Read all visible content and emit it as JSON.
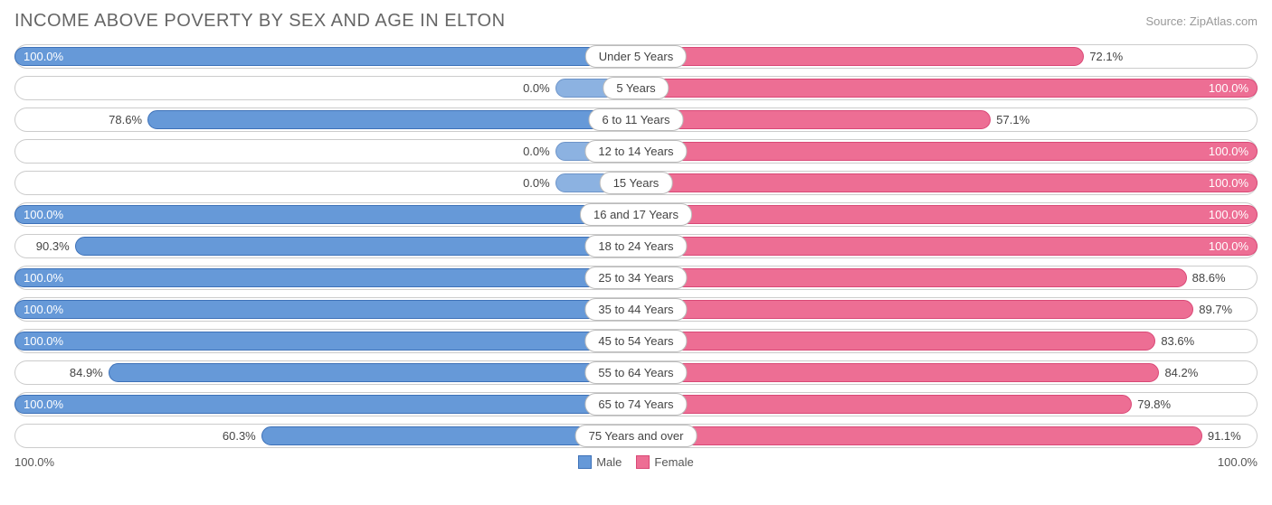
{
  "title": "INCOME ABOVE POVERTY BY SEX AND AGE IN ELTON",
  "source": "Source: ZipAtlas.com",
  "axis_left": "100.0%",
  "axis_right": "100.0%",
  "legend": {
    "male": "Male",
    "female": "Female"
  },
  "colors": {
    "male_fill": "#6699d8",
    "male_border": "#3d71b8",
    "female_fill": "#ed6e94",
    "female_border": "#d94876",
    "track_border": "#cccccc",
    "text": "#444444"
  },
  "rows": [
    {
      "category": "Under 5 Years",
      "male": 100.0,
      "female": 72.1,
      "male_label": "100.0%",
      "female_label": "72.1%"
    },
    {
      "category": "5 Years",
      "male": 0.0,
      "female": 100.0,
      "male_label": "0.0%",
      "female_label": "100.0%",
      "male_stub": true
    },
    {
      "category": "6 to 11 Years",
      "male": 78.6,
      "female": 57.1,
      "male_label": "78.6%",
      "female_label": "57.1%"
    },
    {
      "category": "12 to 14 Years",
      "male": 0.0,
      "female": 100.0,
      "male_label": "0.0%",
      "female_label": "100.0%",
      "male_stub": true
    },
    {
      "category": "15 Years",
      "male": 0.0,
      "female": 100.0,
      "male_label": "0.0%",
      "female_label": "100.0%",
      "male_stub": true
    },
    {
      "category": "16 and 17 Years",
      "male": 100.0,
      "female": 100.0,
      "male_label": "100.0%",
      "female_label": "100.0%"
    },
    {
      "category": "18 to 24 Years",
      "male": 90.3,
      "female": 100.0,
      "male_label": "90.3%",
      "female_label": "100.0%"
    },
    {
      "category": "25 to 34 Years",
      "male": 100.0,
      "female": 88.6,
      "male_label": "100.0%",
      "female_label": "88.6%"
    },
    {
      "category": "35 to 44 Years",
      "male": 100.0,
      "female": 89.7,
      "male_label": "100.0%",
      "female_label": "89.7%"
    },
    {
      "category": "45 to 54 Years",
      "male": 100.0,
      "female": 83.6,
      "male_label": "100.0%",
      "female_label": "83.6%"
    },
    {
      "category": "55 to 64 Years",
      "male": 84.9,
      "female": 84.2,
      "male_label": "84.9%",
      "female_label": "84.2%"
    },
    {
      "category": "65 to 74 Years",
      "male": 100.0,
      "female": 79.8,
      "male_label": "100.0%",
      "female_label": "79.8%"
    },
    {
      "category": "75 Years and over",
      "male": 60.3,
      "female": 91.1,
      "male_label": "60.3%",
      "female_label": "91.1%"
    }
  ],
  "stub_width_pct": 13
}
